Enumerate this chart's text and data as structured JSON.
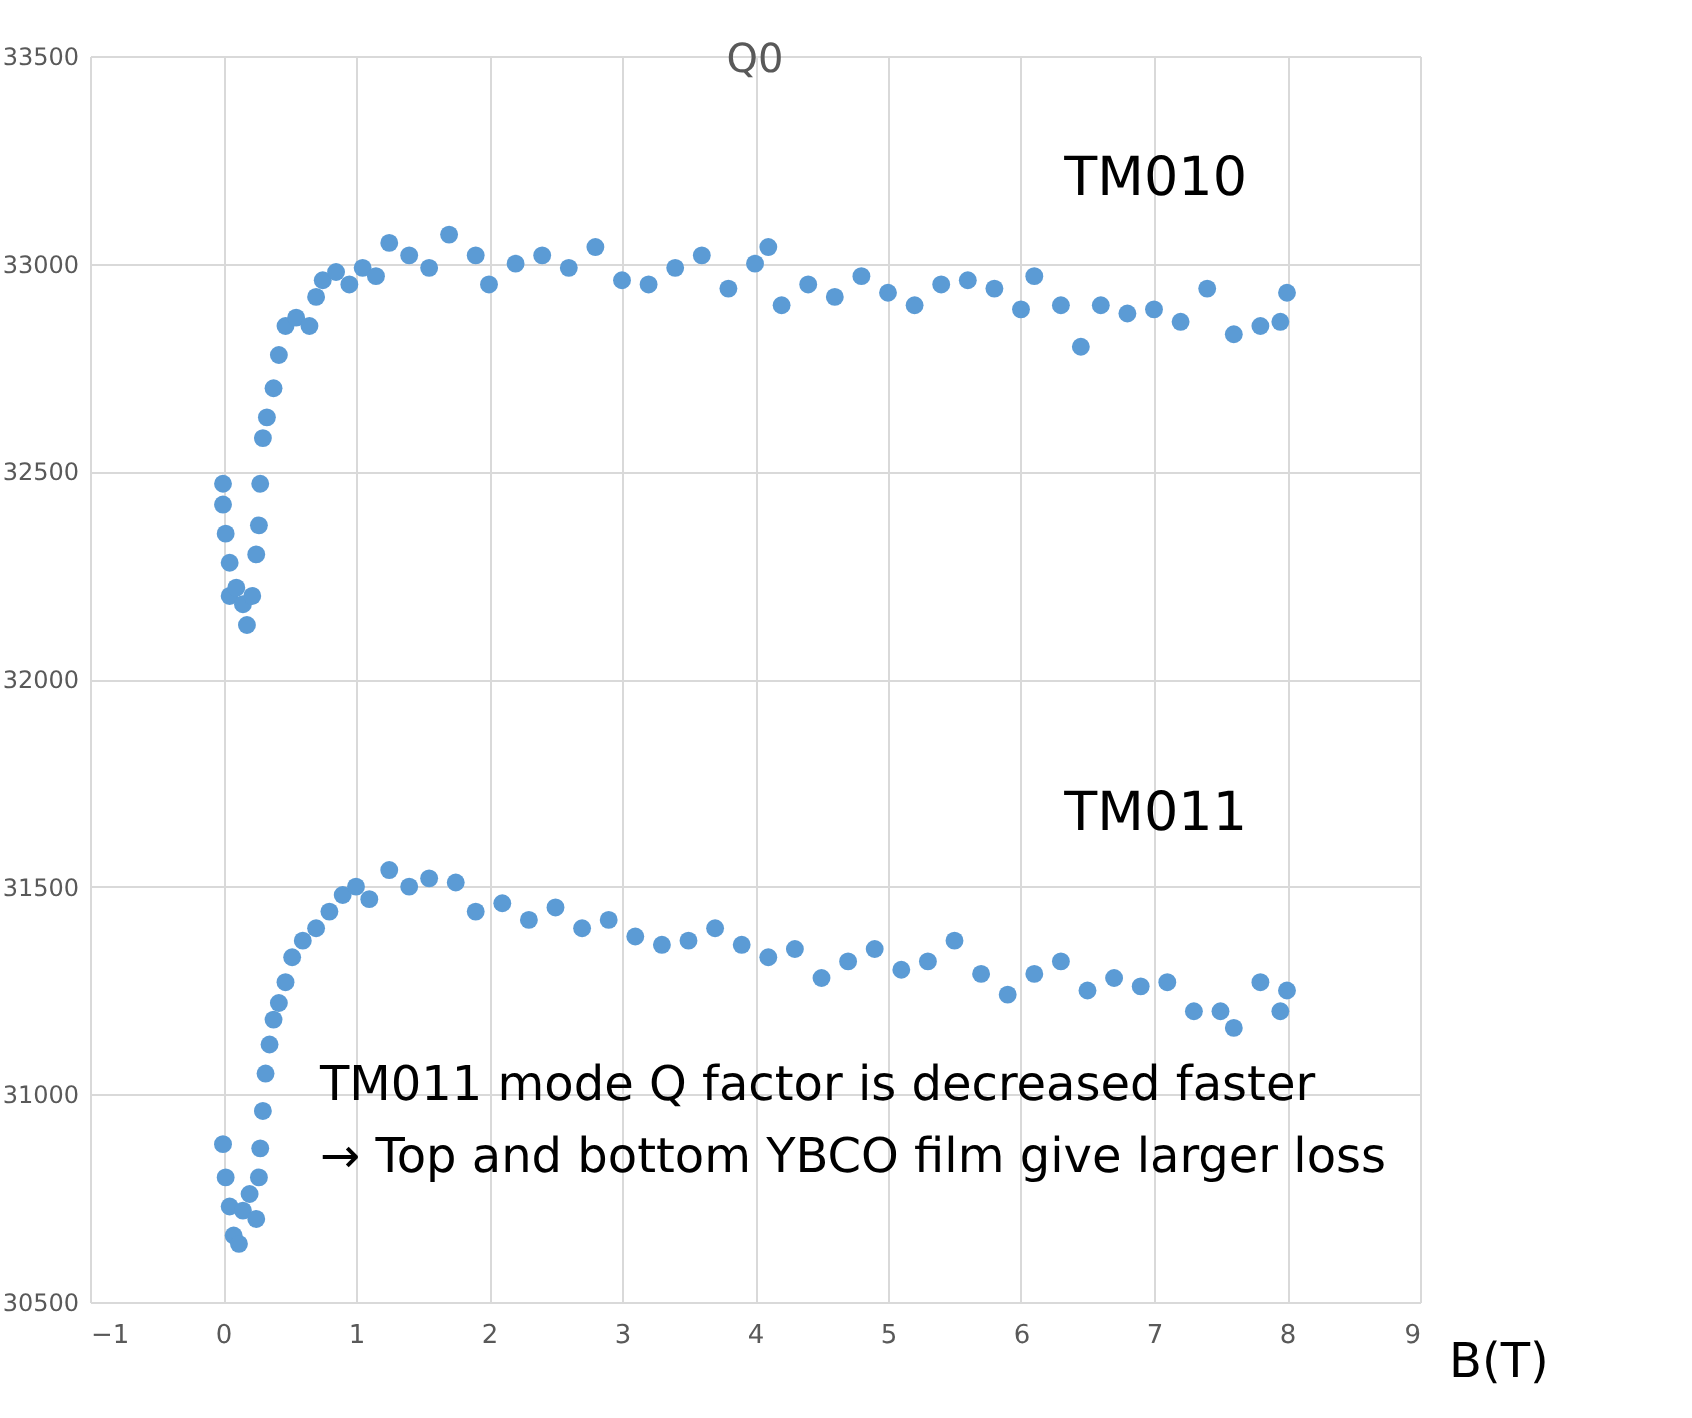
{
  "chart_data": {
    "type": "scatter",
    "title": "Q0",
    "xlabel": "B(T)",
    "xlim": [
      -1,
      9
    ],
    "xticks": [
      -1,
      0,
      1,
      2,
      3,
      4,
      5,
      6,
      7,
      8,
      9
    ],
    "ylim": [
      30500,
      33500
    ],
    "yticks": [
      30500,
      31000,
      31500,
      32000,
      32500,
      33000,
      33500
    ],
    "grid": true,
    "legend": false,
    "marker": "circle",
    "annotations": [
      "TM011 mode Q factor is decreased faster",
      "→ Top and bottom YBCO film give larger loss"
    ],
    "series": [
      {
        "name": "TM010",
        "color": "#5b9bd5",
        "x": [
          0.0,
          0.0,
          0.02,
          0.05,
          0.05,
          0.1,
          0.15,
          0.18,
          0.22,
          0.25,
          0.27,
          0.28,
          0.3,
          0.33,
          0.38,
          0.42,
          0.47,
          0.55,
          0.65,
          0.7,
          0.75,
          0.85,
          0.95,
          1.05,
          1.15,
          1.25,
          1.4,
          1.55,
          1.7,
          1.9,
          2.0,
          2.2,
          2.4,
          2.6,
          2.8,
          3.0,
          3.2,
          3.4,
          3.6,
          3.8,
          4.0,
          4.1,
          4.2,
          4.4,
          4.6,
          4.8,
          5.0,
          5.2,
          5.4,
          5.6,
          5.8,
          6.0,
          6.1,
          6.3,
          6.45,
          6.6,
          6.8,
          7.0,
          7.2,
          7.4,
          7.6,
          7.8,
          7.95,
          8.0
        ],
        "values": [
          32470,
          32420,
          32350,
          32280,
          32200,
          32220,
          32180,
          32130,
          32200,
          32300,
          32370,
          32470,
          32580,
          32630,
          32700,
          32780,
          32850,
          32870,
          32850,
          32920,
          32960,
          32980,
          32950,
          32990,
          32970,
          33050,
          33020,
          32990,
          33070,
          33020,
          32950,
          33000,
          33020,
          32990,
          33040,
          32960,
          32950,
          32990,
          33020,
          32940,
          33000,
          33040,
          32900,
          32950,
          32920,
          32970,
          32930,
          32900,
          32950,
          32960,
          32940,
          32890,
          32970,
          32900,
          32800,
          32900,
          32880,
          32890,
          32860,
          32940,
          32830,
          32850,
          32860,
          32930
        ]
      },
      {
        "name": "TM011",
        "color": "#5b9bd5",
        "x": [
          0.0,
          0.02,
          0.05,
          0.08,
          0.12,
          0.15,
          0.2,
          0.25,
          0.27,
          0.28,
          0.3,
          0.32,
          0.35,
          0.38,
          0.42,
          0.47,
          0.52,
          0.6,
          0.7,
          0.8,
          0.9,
          1.0,
          1.1,
          1.25,
          1.4,
          1.55,
          1.75,
          1.9,
          2.1,
          2.3,
          2.5,
          2.7,
          2.9,
          3.1,
          3.3,
          3.5,
          3.7,
          3.9,
          4.1,
          4.3,
          4.5,
          4.7,
          4.9,
          5.1,
          5.3,
          5.5,
          5.7,
          5.9,
          6.1,
          6.3,
          6.5,
          6.7,
          6.9,
          7.1,
          7.3,
          7.5,
          7.6,
          7.8,
          7.95,
          8.0
        ],
        "values": [
          30880,
          30800,
          30730,
          30660,
          30640,
          30720,
          30760,
          30700,
          30800,
          30870,
          30960,
          31050,
          31120,
          31180,
          31220,
          31270,
          31330,
          31370,
          31400,
          31440,
          31480,
          31500,
          31470,
          31540,
          31500,
          31520,
          31510,
          31440,
          31460,
          31420,
          31450,
          31400,
          31420,
          31380,
          31360,
          31370,
          31400,
          31360,
          31330,
          31350,
          31280,
          31320,
          31350,
          31300,
          31320,
          31370,
          31290,
          31240,
          31290,
          31320,
          31250,
          31280,
          31260,
          31270,
          31200,
          31200,
          31160,
          31270,
          31200,
          31250
        ]
      }
    ]
  }
}
